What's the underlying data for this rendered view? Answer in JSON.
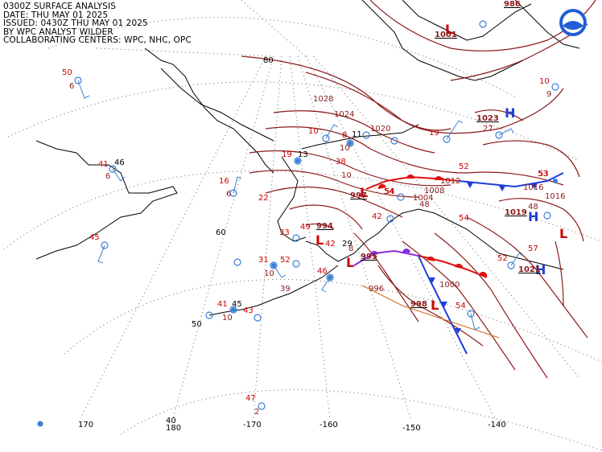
{
  "header": {
    "title": "0300Z SURFACE ANALYSIS",
    "date": "DATE: THU MAY 01 2025",
    "issued": "ISSUED: 0430Z THU MAY 01 2025",
    "analyst": "BY WPC ANALYST WILDER",
    "centers": "COLLABORATING CENTERS: WPC, NHC, OPC"
  },
  "colors": {
    "isobar": "#8b1a1a",
    "front_cold": "#1f3fd6",
    "front_warm": "#e01010",
    "front_occluded": "#8a2be2",
    "high": "#1f3fd6",
    "low": "#cc0000",
    "station": "#3a7fd5",
    "coast": "#000000",
    "grid": "#555555"
  },
  "grid_labels": {
    "lat": [
      "80",
      "60",
      "50",
      "40"
    ],
    "lon": [
      "170",
      "180",
      "-170",
      "-160",
      "-150",
      "-140"
    ]
  },
  "pressure_centers": [
    {
      "type": "H",
      "value": "1023"
    },
    {
      "type": "H",
      "value": "1019"
    },
    {
      "type": "H",
      "value": "1021"
    },
    {
      "type": "L",
      "value": "1001"
    },
    {
      "type": "L",
      "value": "997"
    },
    {
      "type": "L",
      "value": "994"
    },
    {
      "type": "L",
      "value": "995"
    },
    {
      "type": "L",
      "value": "998"
    },
    {
      "type": "L",
      "value": "986"
    }
  ],
  "isobar_labels": [
    "1028",
    "1024",
    "1020",
    "1016",
    "1012",
    "1008",
    "1004",
    "1000",
    "996",
    "1016"
  ],
  "station_values": [
    "50",
    "6",
    "41",
    "46",
    "6",
    "45",
    "16",
    "6",
    "10",
    "8",
    "11",
    "10",
    "13",
    "19",
    "38",
    "10",
    "19",
    "22",
    "52",
    "27",
    "10",
    "9",
    "54",
    "48",
    "54",
    "42",
    "53",
    "33",
    "49",
    "31",
    "52",
    "10",
    "46",
    "39",
    "41",
    "45",
    "10",
    "43",
    "29",
    "42",
    "8",
    "47",
    "2",
    "54",
    "53",
    "57",
    "48",
    "54",
    "52"
  ]
}
